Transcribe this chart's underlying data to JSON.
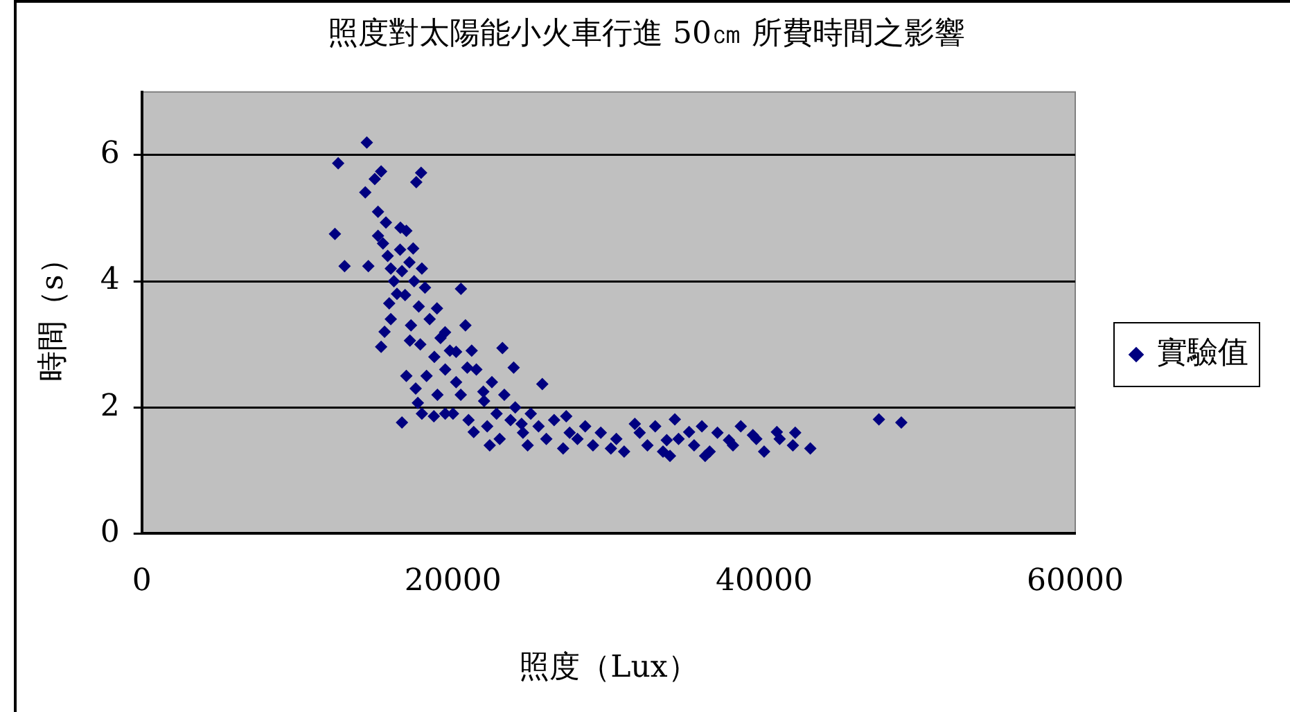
{
  "chart_data": {
    "type": "scatter",
    "title": "照度對太陽能小火車行進 50㎝ 所費時間之影響",
    "xlabel": "照度（Lux）",
    "ylabel": "時間（s）",
    "xlim": [
      0,
      60000
    ],
    "xticks": [
      0,
      20000,
      40000,
      60000
    ],
    "ylim": [
      0,
      7
    ],
    "yticks": [
      0,
      2,
      4,
      6
    ],
    "grid": "y",
    "legend": "right",
    "marker": "diamond",
    "series": [
      {
        "name": "實驗值",
        "color": "#000080",
        "x": [
          14460,
          12620,
          12410,
          13030,
          14560,
          14360,
          14970,
          15380,
          17950,
          17640,
          15180,
          15690,
          15180,
          16620,
          17440,
          16720,
          16920,
          15900,
          15380,
          17230,
          18970,
          20510,
          19490,
          20200,
          20920,
          21950,
          23180,
          23900,
          25740,
          16720,
          17740,
          18770,
          21330,
          22360,
          24410,
          27080,
          27280,
          30150,
          31690,
          33740,
          33950,
          34260,
          35180,
          36210,
          37740,
          39280,
          40820,
          41850,
          42970,
          47380,
          48820,
          15500,
          15800,
          16000,
          16200,
          16400,
          16000,
          15600,
          16600,
          17000,
          17200,
          17500,
          17800,
          18000,
          18200,
          17300,
          17900,
          18500,
          18800,
          19200,
          19500,
          19800,
          20200,
          20500,
          20800,
          21200,
          21500,
          22000,
          22500,
          22800,
          23300,
          23700,
          24000,
          24500,
          25000,
          25500,
          26000,
          26500,
          27500,
          28000,
          28500,
          29000,
          29500,
          30500,
          31000,
          32000,
          32500,
          33000,
          33500,
          34500,
          35500,
          36000,
          36500,
          37000,
          38000,
          38500,
          39500,
          40000,
          41000,
          42000,
          18300,
          19000,
          20000,
          21000,
          19500,
          23000,
          24800,
          22200,
          17000,
          17600,
          18000
        ],
        "values": [
          6.2,
          5.87,
          4.75,
          4.24,
          4.24,
          5.41,
          5.62,
          5.74,
          5.72,
          5.57,
          5.1,
          4.93,
          4.72,
          4.85,
          4.52,
          4.16,
          3.78,
          3.65,
          2.96,
          3.06,
          3.57,
          3.88,
          3.19,
          2.88,
          2.63,
          2.25,
          2.94,
          2.63,
          2.37,
          1.76,
          2.07,
          1.86,
          1.61,
          1.4,
          1.74,
          1.35,
          1.86,
          1.35,
          1.74,
          1.48,
          1.23,
          1.81,
          1.61,
          1.23,
          1.48,
          1.56,
          1.61,
          1.4,
          1.35,
          1.81,
          1.76,
          4.6,
          4.4,
          4.2,
          4.0,
          3.8,
          3.4,
          3.2,
          4.5,
          4.8,
          4.3,
          4.0,
          3.6,
          4.2,
          3.9,
          3.3,
          3.0,
          3.4,
          2.8,
          3.1,
          2.6,
          2.9,
          2.4,
          2.2,
          3.3,
          2.9,
          2.6,
          2.1,
          2.4,
          1.9,
          2.2,
          1.8,
          2.0,
          1.6,
          1.9,
          1.7,
          1.5,
          1.8,
          1.6,
          1.5,
          1.7,
          1.4,
          1.6,
          1.5,
          1.3,
          1.6,
          1.4,
          1.7,
          1.3,
          1.5,
          1.4,
          1.7,
          1.3,
          1.6,
          1.4,
          1.7,
          1.5,
          1.3,
          1.5,
          1.6,
          2.5,
          2.2,
          1.9,
          1.8,
          1.9,
          1.5,
          1.4,
          1.7,
          2.5,
          2.3,
          1.9
        ]
      }
    ]
  }
}
